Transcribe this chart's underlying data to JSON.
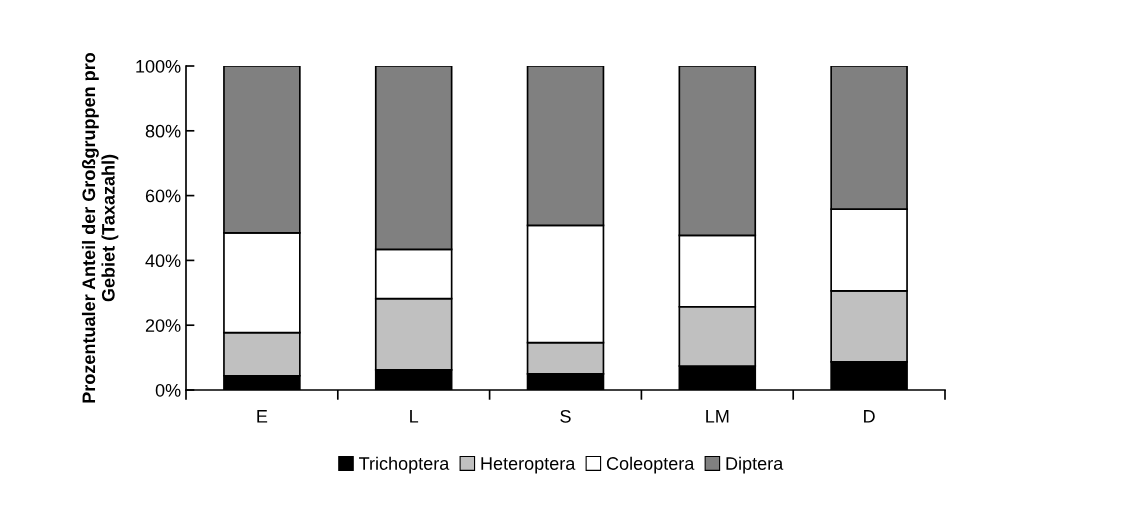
{
  "chart_data": {
    "type": "bar",
    "stacked": true,
    "ylabel": "Prozentualer Anteil der Großgruppen pro\nGebiet (Taxazahl)",
    "categories": [
      "E",
      "L",
      "S",
      "LM",
      "D"
    ],
    "series": [
      {
        "name": "Trichoptera",
        "color": "#000000",
        "values": [
          4.4,
          6.2,
          5.0,
          7.4,
          8.7
        ]
      },
      {
        "name": "Heteroptera",
        "color": "#c0c0c0",
        "values": [
          13.3,
          22.0,
          9.6,
          18.3,
          21.9
        ]
      },
      {
        "name": "Coleoptera",
        "color": "#ffffff",
        "values": [
          30.8,
          15.2,
          36.2,
          22.0,
          25.2
        ]
      },
      {
        "name": "Diptera",
        "color": "#808080",
        "values": [
          51.5,
          56.6,
          49.2,
          52.3,
          44.2
        ]
      }
    ],
    "ylim": [
      0,
      100
    ],
    "yticks": [
      {
        "value": 0,
        "label": "0%"
      },
      {
        "value": 20,
        "label": "20%"
      },
      {
        "value": 40,
        "label": "40%"
      },
      {
        "value": 60,
        "label": "60%"
      },
      {
        "value": 80,
        "label": "80%"
      },
      {
        "value": 100,
        "label": "100%"
      }
    ],
    "grid": false,
    "legend": "bottom"
  }
}
